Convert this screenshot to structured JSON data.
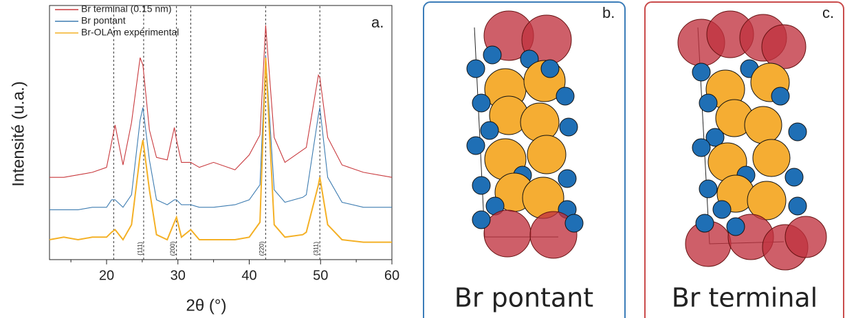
{
  "chart_data": {
    "type": "line",
    "panel_label": "a.",
    "x_label": "2θ (°)",
    "y_label": "Intensité (u.a.)",
    "x": [
      12,
      14,
      16,
      18,
      20,
      20.7,
      21.2,
      22.3,
      23.5,
      24.7,
      25.1,
      26,
      27,
      28.5,
      29.5,
      29.8,
      30.5,
      31.8,
      33,
      35,
      38,
      40,
      41.5,
      42.3,
      43.5,
      45,
      47.5,
      48,
      49.7,
      49.9,
      51,
      53,
      56,
      60
    ],
    "series": [
      {
        "name": "Br terminal (0.15 nm)",
        "color": "#c8383c",
        "values": [
          33,
          33,
          34,
          35,
          37,
          47,
          54,
          38,
          55,
          81,
          78,
          52,
          41,
          40,
          53,
          48,
          39,
          39,
          37,
          39,
          36,
          42,
          50,
          94,
          49,
          39,
          44,
          45,
          74,
          73,
          49,
          38,
          35,
          33
        ]
      },
      {
        "name": "Br pontant",
        "color": "#3c7bb0",
        "values": [
          20,
          20,
          20,
          21,
          21,
          24,
          24,
          21,
          26,
          56,
          61,
          40,
          24,
          22,
          24,
          24,
          22,
          22,
          21,
          21,
          22,
          24,
          30,
          82,
          28,
          23,
          25,
          26,
          58,
          61,
          33,
          23,
          21,
          21
        ]
      },
      {
        "name": "Br-OLAm expérimental",
        "color": "#f4b025",
        "values": [
          8,
          9,
          8,
          9,
          9,
          11,
          12,
          8,
          14,
          42,
          48,
          28,
          10,
          8,
          15,
          17,
          9,
          12,
          8,
          8,
          8,
          9,
          15,
          81,
          14,
          9,
          10,
          11,
          30,
          33,
          14,
          8,
          7,
          7
        ]
      }
    ],
    "reference_lines": [
      {
        "x": 21
      },
      {
        "x": 25.2,
        "label": "(111)"
      },
      {
        "x": 29.8,
        "label": "(200)"
      },
      {
        "x": 31.8
      },
      {
        "x": 42.3,
        "label": "(220)"
      },
      {
        "x": 49.9,
        "label": "(311)"
      }
    ],
    "xlim": [
      12,
      60
    ],
    "xticks": [
      20,
      30,
      40,
      50,
      60
    ],
    "xminor_ticks": [
      15,
      25,
      35,
      45,
      55
    ],
    "ylim": [
      0,
      100
    ]
  },
  "panels": [
    {
      "label": "b.",
      "caption": "Br pontant"
    },
    {
      "label": "c.",
      "caption": "Br terminal"
    }
  ]
}
